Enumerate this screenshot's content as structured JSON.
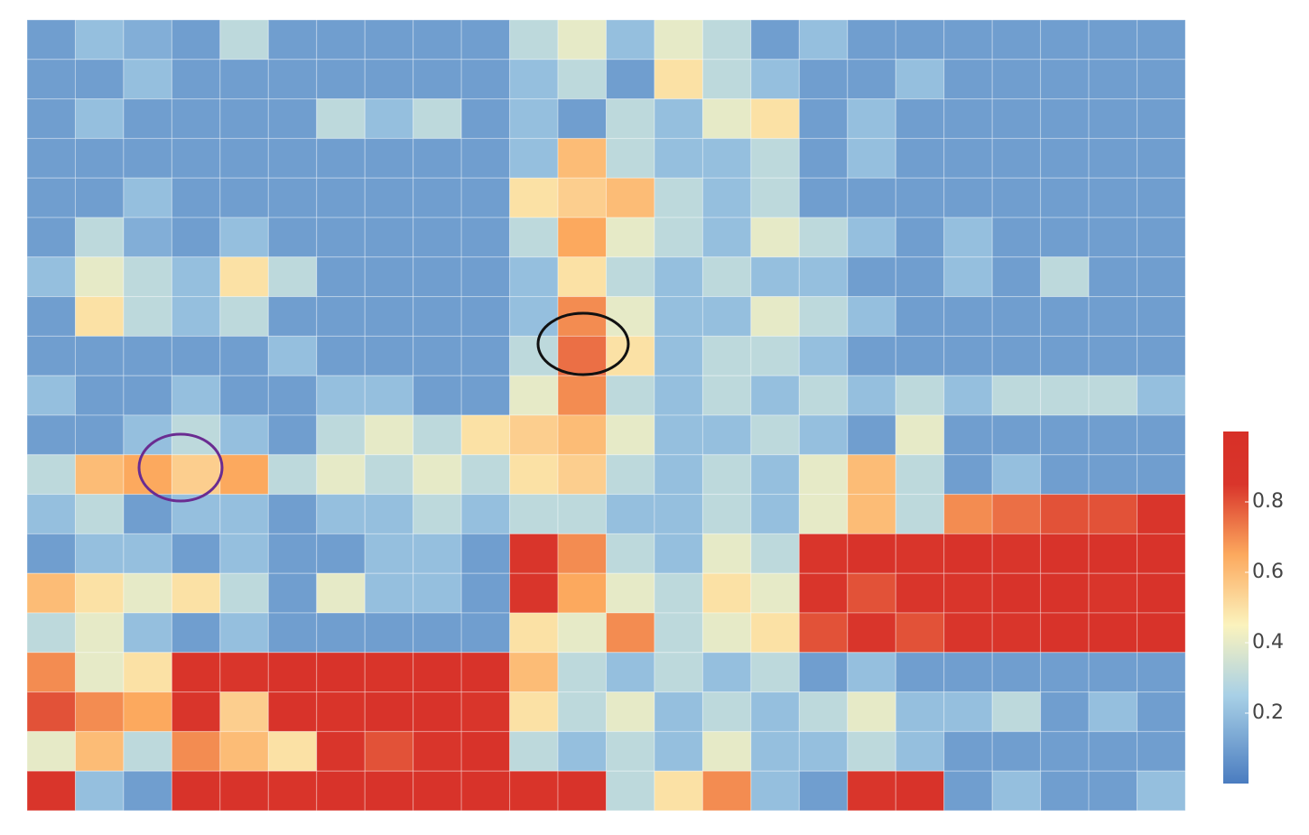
{
  "chart_data": {
    "type": "heatmap",
    "values": [
      [
        0.1,
        0.2,
        0.15,
        0.1,
        0.3,
        0.1,
        0.1,
        0.1,
        0.1,
        0.1,
        0.3,
        0.4,
        0.2,
        0.4,
        0.3,
        0.1,
        0.2,
        0.1,
        0.1,
        0.1,
        0.1,
        0.1,
        0.1,
        0.1
      ],
      [
        0.1,
        0.1,
        0.2,
        0.1,
        0.1,
        0.1,
        0.1,
        0.1,
        0.1,
        0.1,
        0.2,
        0.3,
        0.1,
        0.5,
        0.3,
        0.2,
        0.1,
        0.1,
        0.2,
        0.1,
        0.1,
        0.1,
        0.1,
        0.1
      ],
      [
        0.1,
        0.2,
        0.1,
        0.1,
        0.1,
        0.1,
        0.3,
        0.2,
        0.3,
        0.1,
        0.2,
        0.1,
        0.3,
        0.2,
        0.4,
        0.5,
        0.1,
        0.2,
        0.1,
        0.1,
        0.1,
        0.1,
        0.1,
        0.1
      ],
      [
        0.1,
        0.1,
        0.1,
        0.1,
        0.1,
        0.1,
        0.1,
        0.1,
        0.1,
        0.1,
        0.2,
        0.6,
        0.3,
        0.2,
        0.2,
        0.3,
        0.1,
        0.2,
        0.1,
        0.1,
        0.1,
        0.1,
        0.1,
        0.1
      ],
      [
        0.1,
        0.1,
        0.2,
        0.1,
        0.1,
        0.1,
        0.1,
        0.1,
        0.1,
        0.1,
        0.5,
        0.55,
        0.6,
        0.3,
        0.2,
        0.3,
        0.1,
        0.1,
        0.1,
        0.1,
        0.1,
        0.1,
        0.1,
        0.1
      ],
      [
        0.1,
        0.3,
        0.15,
        0.1,
        0.2,
        0.1,
        0.1,
        0.1,
        0.1,
        0.1,
        0.3,
        0.65,
        0.4,
        0.3,
        0.2,
        0.4,
        0.3,
        0.2,
        0.1,
        0.2,
        0.1,
        0.1,
        0.1,
        0.1
      ],
      [
        0.2,
        0.4,
        0.3,
        0.2,
        0.5,
        0.3,
        0.1,
        0.1,
        0.1,
        0.1,
        0.2,
        0.5,
        0.3,
        0.2,
        0.3,
        0.2,
        0.2,
        0.1,
        0.1,
        0.2,
        0.1,
        0.3,
        0.1,
        0.1
      ],
      [
        0.1,
        0.5,
        0.3,
        0.2,
        0.3,
        0.1,
        0.1,
        0.1,
        0.1,
        0.1,
        0.2,
        0.7,
        0.4,
        0.2,
        0.2,
        0.4,
        0.3,
        0.2,
        0.1,
        0.1,
        0.1,
        0.1,
        0.1,
        0.1
      ],
      [
        0.1,
        0.1,
        0.1,
        0.1,
        0.1,
        0.2,
        0.1,
        0.1,
        0.1,
        0.1,
        0.3,
        0.75,
        0.5,
        0.2,
        0.3,
        0.3,
        0.2,
        0.1,
        0.1,
        0.1,
        0.1,
        0.1,
        0.1,
        0.1
      ],
      [
        0.2,
        0.1,
        0.1,
        0.2,
        0.1,
        0.1,
        0.2,
        0.2,
        0.1,
        0.1,
        0.4,
        0.7,
        0.3,
        0.2,
        0.3,
        0.2,
        0.3,
        0.2,
        0.3,
        0.2,
        0.3,
        0.3,
        0.3,
        0.2
      ],
      [
        0.1,
        0.1,
        0.2,
        0.3,
        0.2,
        0.1,
        0.3,
        0.4,
        0.3,
        0.5,
        0.55,
        0.6,
        0.4,
        0.2,
        0.2,
        0.3,
        0.2,
        0.1,
        0.4,
        0.1,
        0.1,
        0.1,
        0.1,
        0.1
      ],
      [
        0.3,
        0.6,
        0.65,
        0.55,
        0.65,
        0.3,
        0.4,
        0.3,
        0.4,
        0.3,
        0.5,
        0.55,
        0.3,
        0.2,
        0.3,
        0.2,
        0.4,
        0.6,
        0.3,
        0.1,
        0.2,
        0.1,
        0.1,
        0.1
      ],
      [
        0.2,
        0.3,
        0.1,
        0.2,
        0.2,
        0.1,
        0.2,
        0.2,
        0.3,
        0.2,
        0.3,
        0.3,
        0.2,
        0.2,
        0.3,
        0.2,
        0.4,
        0.6,
        0.3,
        0.7,
        0.75,
        0.8,
        0.8,
        0.85
      ],
      [
        0.1,
        0.2,
        0.2,
        0.1,
        0.2,
        0.1,
        0.1,
        0.2,
        0.2,
        0.1,
        0.85,
        0.7,
        0.3,
        0.2,
        0.4,
        0.3,
        0.85,
        0.9,
        0.85,
        0.9,
        0.85,
        0.9,
        0.9,
        0.9
      ],
      [
        0.6,
        0.5,
        0.4,
        0.5,
        0.3,
        0.1,
        0.4,
        0.2,
        0.2,
        0.1,
        0.85,
        0.65,
        0.4,
        0.3,
        0.5,
        0.4,
        0.85,
        0.8,
        0.85,
        0.85,
        0.9,
        0.9,
        0.85,
        0.9
      ],
      [
        0.3,
        0.4,
        0.2,
        0.1,
        0.2,
        0.1,
        0.1,
        0.1,
        0.1,
        0.1,
        0.5,
        0.4,
        0.7,
        0.3,
        0.4,
        0.5,
        0.8,
        0.85,
        0.8,
        0.85,
        0.85,
        0.9,
        0.9,
        0.9
      ],
      [
        0.7,
        0.4,
        0.5,
        0.88,
        0.85,
        0.9,
        0.9,
        0.88,
        0.9,
        0.9,
        0.6,
        0.3,
        0.2,
        0.3,
        0.2,
        0.3,
        0.1,
        0.2,
        0.1,
        0.1,
        0.1,
        0.1,
        0.1,
        0.1
      ],
      [
        0.8,
        0.7,
        0.65,
        0.85,
        0.55,
        0.9,
        0.88,
        0.9,
        0.9,
        0.85,
        0.5,
        0.3,
        0.4,
        0.2,
        0.3,
        0.2,
        0.3,
        0.4,
        0.2,
        0.2,
        0.3,
        0.1,
        0.2,
        0.1
      ],
      [
        0.4,
        0.6,
        0.3,
        0.7,
        0.6,
        0.5,
        0.85,
        0.8,
        0.85,
        0.9,
        0.3,
        0.2,
        0.3,
        0.2,
        0.4,
        0.2,
        0.2,
        0.3,
        0.2,
        0.1,
        0.1,
        0.1,
        0.1,
        0.1
      ],
      [
        0.85,
        0.2,
        0.1,
        0.9,
        0.9,
        0.88,
        0.9,
        0.9,
        0.9,
        0.9,
        0.88,
        0.9,
        0.3,
        0.5,
        0.7,
        0.2,
        0.1,
        0.85,
        0.9,
        0.1,
        0.2,
        0.1,
        0.1,
        0.2
      ]
    ],
    "zlim": [
      0,
      1
    ],
    "zticks": [
      0.2,
      0.4,
      0.6,
      0.8
    ],
    "colorscale": [
      [
        0,
        "#4a7cc0"
      ],
      [
        0.25,
        "#a8d0e6"
      ],
      [
        0.45,
        "#fbf3bd"
      ],
      [
        0.65,
        "#fca95e"
      ],
      [
        0.85,
        "#d9352b"
      ],
      [
        1,
        "#d73027"
      ]
    ]
  }
}
